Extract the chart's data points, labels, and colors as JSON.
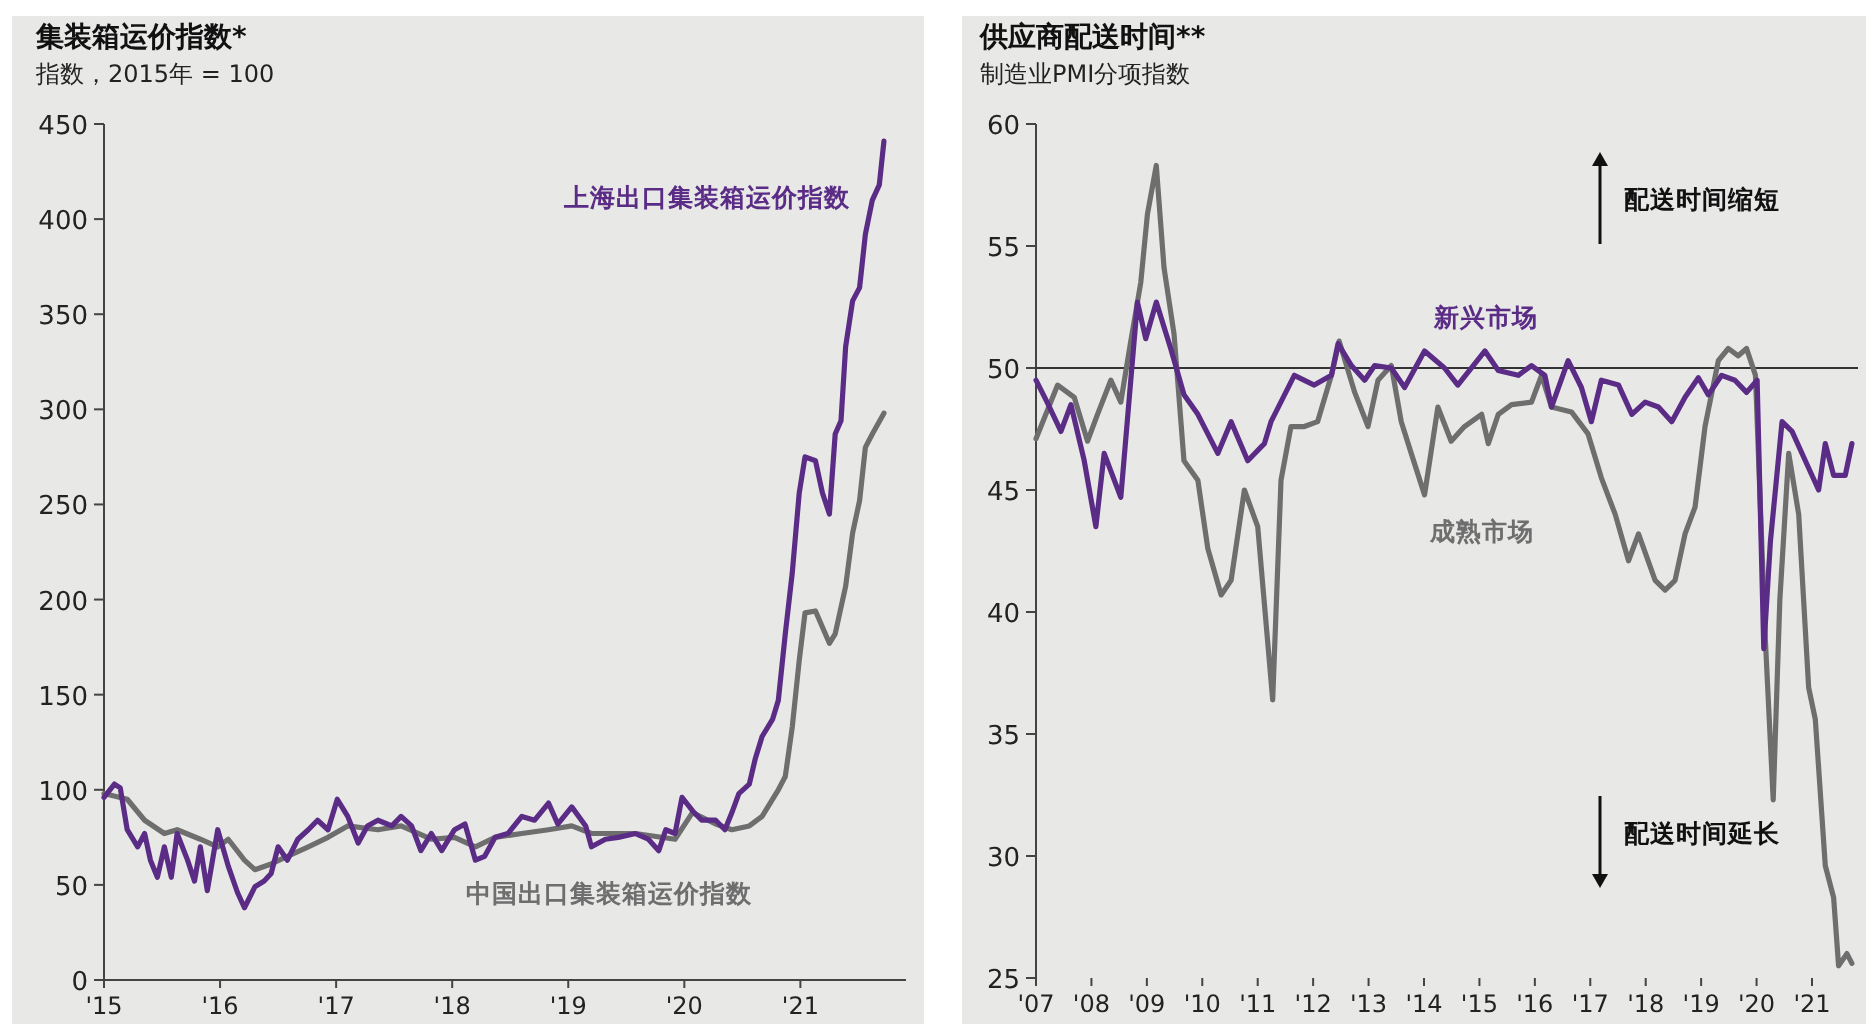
{
  "chart_data": [
    {
      "type": "line",
      "title": "集装箱运价指数*",
      "subtitle": "指数，2015年 = 100",
      "xlim": [
        2015,
        2021.91
      ],
      "ylim": [
        0,
        450
      ],
      "yticks": [
        0,
        50,
        100,
        150,
        200,
        250,
        300,
        350,
        400,
        450
      ],
      "xticks": [
        {
          "value": 2015,
          "label": "'15"
        },
        {
          "value": 2016,
          "label": "'16"
        },
        {
          "value": 2017,
          "label": "'17"
        },
        {
          "value": 2018,
          "label": "'18"
        },
        {
          "value": 2019,
          "label": "'19"
        },
        {
          "value": 2020,
          "label": "'20"
        },
        {
          "value": 2021,
          "label": "'21"
        }
      ],
      "series": [
        {
          "name": "中国出口集装箱运价指数",
          "color": "#6e6e6e",
          "x": [
            2015.0,
            2015.2,
            2015.35,
            2015.52,
            2015.63,
            2015.83,
            2015.98,
            2016.07,
            2016.21,
            2016.3,
            2016.44,
            2016.58,
            2016.76,
            2016.93,
            2017.1,
            2017.36,
            2017.56,
            2017.82,
            2018.02,
            2018.2,
            2018.37,
            2018.6,
            2018.83,
            2019.03,
            2019.2,
            2019.58,
            2019.92,
            2020.07,
            2020.27,
            2020.41,
            2020.56,
            2020.67,
            2020.81,
            2020.87,
            2020.93,
            2020.99,
            2021.04,
            2021.13,
            2021.25,
            2021.3,
            2021.39,
            2021.45,
            2021.51,
            2021.56,
            2021.62,
            2021.72
          ],
          "values": [
            98,
            95,
            84,
            77,
            79,
            74,
            70,
            74,
            63,
            58,
            61,
            65,
            70,
            75,
            81,
            79,
            81,
            74,
            75,
            70,
            75,
            77,
            79,
            81,
            77,
            77,
            74,
            88,
            82,
            79,
            81,
            86,
            100,
            107,
            133,
            168,
            193,
            194,
            177,
            182,
            207,
            235,
            252,
            280,
            287,
            298
          ]
        },
        {
          "name": "上海出口集装箱运价指数",
          "color": "#5b2c86",
          "x": [
            2015.0,
            2015.09,
            2015.14,
            2015.2,
            2015.29,
            2015.35,
            2015.4,
            2015.46,
            2015.52,
            2015.58,
            2015.63,
            2015.72,
            2015.78,
            2015.83,
            2015.89,
            2015.98,
            2016.07,
            2016.15,
            2016.21,
            2016.3,
            2016.38,
            2016.44,
            2016.5,
            2016.58,
            2016.67,
            2016.76,
            2016.84,
            2016.93,
            2017.01,
            2017.1,
            2017.19,
            2017.27,
            2017.36,
            2017.48,
            2017.56,
            2017.65,
            2017.73,
            2017.82,
            2017.91,
            2018.02,
            2018.11,
            2018.2,
            2018.28,
            2018.37,
            2018.48,
            2018.6,
            2018.71,
            2018.83,
            2018.91,
            2019.03,
            2019.15,
            2019.2,
            2019.32,
            2019.43,
            2019.58,
            2019.69,
            2019.78,
            2019.84,
            2019.92,
            2019.98,
            2020.07,
            2020.15,
            2020.27,
            2020.35,
            2020.41,
            2020.47,
            2020.56,
            2020.61,
            2020.67,
            2020.76,
            2020.81,
            2020.87,
            2020.93,
            2020.99,
            2021.04,
            2021.13,
            2021.19,
            2021.25,
            2021.3,
            2021.35,
            2021.39,
            2021.45,
            2021.51,
            2021.56,
            2021.62,
            2021.68,
            2021.72
          ],
          "values": [
            96,
            103,
            101,
            79,
            70,
            77,
            63,
            54,
            70,
            54,
            77,
            63,
            52,
            70,
            47,
            79,
            60,
            46,
            38,
            49,
            52,
            56,
            70,
            63,
            74,
            79,
            84,
            79,
            95,
            86,
            72,
            81,
            84,
            81,
            86,
            81,
            68,
            77,
            68,
            79,
            82,
            63,
            65,
            75,
            77,
            86,
            84,
            93,
            82,
            91,
            81,
            70,
            74,
            75,
            77,
            74,
            68,
            79,
            77,
            96,
            89,
            84,
            84,
            79,
            88,
            98,
            103,
            116,
            128,
            137,
            147,
            182,
            214,
            256,
            275,
            273,
            256,
            245,
            287,
            294,
            333,
            357,
            364,
            392,
            410,
            418,
            441
          ]
        }
      ]
    },
    {
      "type": "line",
      "title": "供应商配送时间**",
      "subtitle": "制造业PMI分项指数",
      "annotations": [
        "配送时间缩短",
        "配送时间延长"
      ],
      "xlim": [
        2007,
        2021.83
      ],
      "ylim": [
        25,
        60
      ],
      "yticks": [
        25,
        30,
        35,
        40,
        45,
        50,
        55,
        60
      ],
      "xticks": [
        {
          "value": 2007,
          "label": "'07"
        },
        {
          "value": 2008,
          "label": "'08"
        },
        {
          "value": 2009,
          "label": "'09"
        },
        {
          "value": 2010,
          "label": "'10"
        },
        {
          "value": 2011,
          "label": "'11"
        },
        {
          "value": 2012,
          "label": "'12"
        },
        {
          "value": 2013,
          "label": "'13"
        },
        {
          "value": 2014,
          "label": "'14"
        },
        {
          "value": 2015,
          "label": "'15"
        },
        {
          "value": 2016,
          "label": "'16"
        },
        {
          "value": 2017,
          "label": "'17"
        },
        {
          "value": 2018,
          "label": "'18"
        },
        {
          "value": 2019,
          "label": "'19"
        },
        {
          "value": 2020,
          "label": "'20"
        },
        {
          "value": 2021,
          "label": "'21"
        }
      ],
      "ref_lines": [
        {
          "axis": "y",
          "value": 50,
          "color": "#333333"
        }
      ],
      "series": [
        {
          "name": "成熟市场",
          "color": "#6e6e6e",
          "x": [
            2007.0,
            2007.39,
            2007.69,
            2007.93,
            2008.11,
            2008.35,
            2008.53,
            2008.71,
            2008.89,
            2009.01,
            2009.17,
            2009.31,
            2009.49,
            2009.67,
            2009.92,
            2010.1,
            2010.34,
            2010.52,
            2010.76,
            2011.0,
            2011.27,
            2011.42,
            2011.6,
            2011.84,
            2012.08,
            2012.33,
            2012.47,
            2012.75,
            2012.99,
            2013.17,
            2013.41,
            2013.59,
            2013.77,
            2014.01,
            2014.25,
            2014.49,
            2014.73,
            2015.04,
            2015.16,
            2015.34,
            2015.58,
            2015.94,
            2016.12,
            2016.3,
            2016.66,
            2016.96,
            2017.2,
            2017.45,
            2017.69,
            2017.87,
            2018.17,
            2018.35,
            2018.53,
            2018.71,
            2018.89,
            2019.07,
            2019.31,
            2019.49,
            2019.67,
            2019.82,
            2019.98,
            2020.16,
            2020.3,
            2020.42,
            2020.58,
            2020.76,
            2020.94,
            2021.06,
            2021.24,
            2021.39,
            2021.48,
            2021.63,
            2021.72
          ],
          "values": [
            47.1,
            49.3,
            48.8,
            47.0,
            48.1,
            49.5,
            48.6,
            51.1,
            53.5,
            56.3,
            58.3,
            54.1,
            51.4,
            46.2,
            45.4,
            42.6,
            40.7,
            41.3,
            45.0,
            43.5,
            36.4,
            45.4,
            47.6,
            47.6,
            47.8,
            49.7,
            51.1,
            49.0,
            47.6,
            49.5,
            50.1,
            47.8,
            46.5,
            44.8,
            48.4,
            47.0,
            47.6,
            48.1,
            46.9,
            48.1,
            48.5,
            48.6,
            49.7,
            48.4,
            48.2,
            47.3,
            45.5,
            44.0,
            42.1,
            43.2,
            41.3,
            40.9,
            41.3,
            43.2,
            44.3,
            47.6,
            50.3,
            50.8,
            50.5,
            50.8,
            49.7,
            38.8,
            32.3,
            40.5,
            46.5,
            44.0,
            36.9,
            35.6,
            29.6,
            28.3,
            25.5,
            26.0,
            25.6
          ]
        },
        {
          "name": "新兴市场",
          "color": "#5b2c86",
          "x": [
            2007.0,
            2007.2,
            2007.45,
            2007.63,
            2007.87,
            2008.08,
            2008.23,
            2008.53,
            2008.83,
            2008.98,
            2009.17,
            2009.43,
            2009.67,
            2009.92,
            2010.28,
            2010.52,
            2010.82,
            2011.12,
            2011.24,
            2011.66,
            2012.02,
            2012.33,
            2012.45,
            2012.69,
            2012.93,
            2013.11,
            2013.41,
            2013.65,
            2014.01,
            2014.37,
            2014.61,
            2015.1,
            2015.34,
            2015.7,
            2015.94,
            2016.18,
            2016.3,
            2016.6,
            2016.84,
            2017.02,
            2017.2,
            2017.51,
            2017.75,
            2017.99,
            2018.23,
            2018.47,
            2018.71,
            2018.95,
            2019.13,
            2019.37,
            2019.61,
            2019.82,
            2020.01,
            2020.13,
            2020.25,
            2020.46,
            2020.64,
            2020.88,
            2021.12,
            2021.24,
            2021.39,
            2021.6,
            2021.72
          ],
          "values": [
            49.5,
            48.6,
            47.4,
            48.5,
            46.2,
            43.5,
            46.5,
            44.7,
            52.7,
            51.2,
            52.7,
            50.8,
            48.9,
            48.1,
            46.5,
            47.8,
            46.2,
            46.9,
            47.8,
            49.7,
            49.3,
            49.7,
            51.0,
            50.1,
            49.5,
            50.1,
            50.0,
            49.2,
            50.7,
            50.0,
            49.3,
            50.7,
            49.9,
            49.7,
            50.1,
            49.7,
            48.4,
            50.3,
            49.2,
            47.8,
            49.5,
            49.3,
            48.1,
            48.6,
            48.4,
            47.8,
            48.8,
            49.6,
            48.9,
            49.7,
            49.5,
            49.0,
            49.5,
            38.5,
            42.9,
            47.8,
            47.4,
            46.2,
            45.0,
            46.9,
            45.6,
            45.6,
            46.9
          ]
        }
      ]
    }
  ]
}
